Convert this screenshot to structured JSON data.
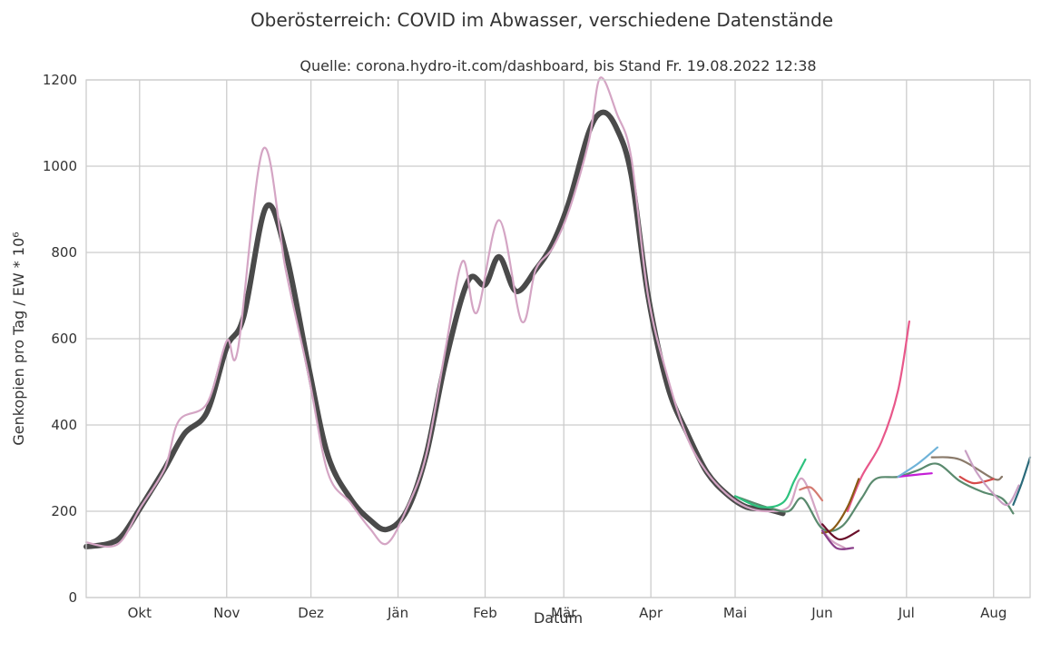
{
  "chart_data": {
    "type": "line",
    "title": "Oberösterreich: COVID im Abwasser, verschiedene Datenstände",
    "subtitle": "Quelle: corona.hydro-it.com/dashboard, bis Stand Fr. 19.08.2022 12:38",
    "xlabel": "Datum",
    "ylabel": "Genkopien pro Tag / EW * 10⁶",
    "xlim": [
      "2021-09-12",
      "2022-08-14"
    ],
    "ylim": [
      0,
      1200
    ],
    "grid": true,
    "legend": "none",
    "x_ticks": [
      {
        "date": "2021-10-01",
        "label": "Okt"
      },
      {
        "date": "2021-11-01",
        "label": "Nov"
      },
      {
        "date": "2021-12-01",
        "label": "Dez"
      },
      {
        "date": "2022-01-01",
        "label": "Jän"
      },
      {
        "date": "2022-02-01",
        "label": "Feb"
      },
      {
        "date": "2022-03-01",
        "label": "Mär"
      },
      {
        "date": "2022-04-01",
        "label": "Apr"
      },
      {
        "date": "2022-05-01",
        "label": "Mai"
      },
      {
        "date": "2022-06-01",
        "label": "Jun"
      },
      {
        "date": "2022-07-01",
        "label": "Jul"
      },
      {
        "date": "2022-08-01",
        "label": "Aug"
      }
    ],
    "y_ticks": [
      {
        "value": 0,
        "label": "0"
      },
      {
        "value": 200,
        "label": "200"
      },
      {
        "value": 400,
        "label": "400"
      },
      {
        "value": 600,
        "label": "600"
      },
      {
        "value": 800,
        "label": "800"
      },
      {
        "value": 1000,
        "label": "1000"
      },
      {
        "value": 1200,
        "label": "1200"
      }
    ],
    "series": [
      {
        "color": "#4a4a4a",
        "width": 6,
        "x": [
          "2021-09-12",
          "2021-09-20",
          "2021-09-25",
          "2021-10-01",
          "2021-10-10",
          "2021-10-17",
          "2021-10-25",
          "2021-11-01",
          "2021-11-07",
          "2021-11-15",
          "2021-11-22",
          "2021-11-30",
          "2021-12-07",
          "2021-12-15",
          "2021-12-22",
          "2021-12-28",
          "2022-01-04",
          "2022-01-11",
          "2022-01-18",
          "2022-01-26",
          "2022-02-01",
          "2022-02-06",
          "2022-02-12",
          "2022-02-19",
          "2022-02-25",
          "2022-03-03",
          "2022-03-10",
          "2022-03-15",
          "2022-03-20",
          "2022-03-25",
          "2022-03-31",
          "2022-04-07",
          "2022-04-14",
          "2022-04-21",
          "2022-04-28",
          "2022-05-05",
          "2022-05-12",
          "2022-05-18"
        ],
        "y": [
          118,
          125,
          145,
          205,
          300,
          380,
          430,
          580,
          650,
          905,
          800,
          540,
          330,
          230,
          180,
          158,
          200,
          330,
          550,
          735,
          725,
          790,
          710,
          760,
          820,
          920,
          1080,
          1125,
          1085,
          980,
          700,
          490,
          380,
          290,
          240,
          210,
          205,
          195
        ]
      },
      {
        "color": "#d4a5c4",
        "width": 2.2,
        "x": [
          "2021-09-12",
          "2021-09-20",
          "2021-09-25",
          "2021-10-01",
          "2021-10-10",
          "2021-10-15",
          "2021-10-25",
          "2021-11-01",
          "2021-11-05",
          "2021-11-14",
          "2021-11-22",
          "2021-11-30",
          "2021-12-07",
          "2021-12-15",
          "2021-12-22",
          "2021-12-28",
          "2022-01-04",
          "2022-01-11",
          "2022-01-18",
          "2022-01-24",
          "2022-01-29",
          "2022-02-06",
          "2022-02-14",
          "2022-02-19",
          "2022-02-25",
          "2022-03-03",
          "2022-03-10",
          "2022-03-14",
          "2022-03-20",
          "2022-03-25",
          "2022-03-31",
          "2022-04-07",
          "2022-04-14",
          "2022-04-21",
          "2022-04-28",
          "2022-05-05",
          "2022-05-12",
          "2022-05-20",
          "2022-05-25",
          "2022-06-02",
          "2022-06-09"
        ],
        "y": [
          128,
          118,
          135,
          205,
          300,
          410,
          450,
          595,
          575,
          1040,
          760,
          520,
          290,
          220,
          160,
          125,
          205,
          330,
          580,
          780,
          660,
          875,
          640,
          760,
          810,
          900,
          1060,
          1205,
          1120,
          1020,
          700,
          510,
          370,
          290,
          240,
          210,
          200,
          210,
          275,
          150,
          115
        ]
      },
      {
        "color": "#5a8a6e",
        "width": 2.2,
        "x": [
          "2022-05-01",
          "2022-05-12",
          "2022-05-20",
          "2022-05-25",
          "2022-06-01",
          "2022-06-08",
          "2022-06-15",
          "2022-06-20",
          "2022-06-28",
          "2022-07-05",
          "2022-07-12",
          "2022-07-20",
          "2022-07-28",
          "2022-08-04",
          "2022-08-08"
        ],
        "y": [
          235,
          210,
          200,
          230,
          160,
          165,
          230,
          275,
          280,
          295,
          310,
          270,
          245,
          230,
          195
        ]
      },
      {
        "color": "#2ec27e",
        "width": 2.2,
        "x": [
          "2022-05-01",
          "2022-05-10",
          "2022-05-18",
          "2022-05-22",
          "2022-05-26"
        ],
        "y": [
          235,
          210,
          220,
          270,
          320
        ]
      },
      {
        "color": "#e8578a",
        "width": 2.2,
        "x": [
          "2022-06-10",
          "2022-06-15",
          "2022-06-22",
          "2022-06-28",
          "2022-07-02"
        ],
        "y": [
          200,
          280,
          360,
          480,
          640
        ]
      },
      {
        "color": "#8a5a14",
        "width": 2.2,
        "x": [
          "2022-06-01",
          "2022-06-05",
          "2022-06-10",
          "2022-06-14"
        ],
        "y": [
          150,
          160,
          210,
          275
        ]
      },
      {
        "color": "#6a0f2a",
        "width": 2.2,
        "x": [
          "2022-06-01",
          "2022-06-07",
          "2022-06-14"
        ],
        "y": [
          170,
          135,
          155
        ]
      },
      {
        "color": "#d47a70",
        "width": 2.2,
        "x": [
          "2022-05-24",
          "2022-05-28",
          "2022-06-01"
        ],
        "y": [
          250,
          255,
          225
        ]
      },
      {
        "color": "#8a3f8a",
        "width": 2.2,
        "x": [
          "2022-06-01",
          "2022-06-06",
          "2022-06-12"
        ],
        "y": [
          155,
          115,
          115
        ]
      },
      {
        "color": "#c41ed6",
        "width": 2.2,
        "x": [
          "2022-06-28",
          "2022-07-05",
          "2022-07-10"
        ],
        "y": [
          280,
          285,
          288
        ]
      },
      {
        "color": "#6fb3d9",
        "width": 2.2,
        "x": [
          "2022-06-28",
          "2022-07-05",
          "2022-07-12"
        ],
        "y": [
          280,
          310,
          348
        ]
      },
      {
        "color": "#8a7a6a",
        "width": 2.2,
        "x": [
          "2022-07-10",
          "2022-07-20",
          "2022-08-01",
          "2022-08-04"
        ],
        "y": [
          325,
          320,
          275,
          280
        ]
      },
      {
        "color": "#d64a4a",
        "width": 2.2,
        "x": [
          "2022-07-20",
          "2022-07-25",
          "2022-08-01"
        ],
        "y": [
          280,
          265,
          275
        ]
      },
      {
        "color": "#c9a0c4",
        "width": 2.2,
        "x": [
          "2022-07-22",
          "2022-07-26",
          "2022-08-01",
          "2022-08-06",
          "2022-08-10"
        ],
        "y": [
          340,
          290,
          240,
          215,
          260
        ]
      },
      {
        "color": "#2a6a7a",
        "width": 2.2,
        "x": [
          "2022-08-08",
          "2022-08-11",
          "2022-08-14"
        ],
        "y": [
          215,
          265,
          325
        ]
      }
    ]
  }
}
